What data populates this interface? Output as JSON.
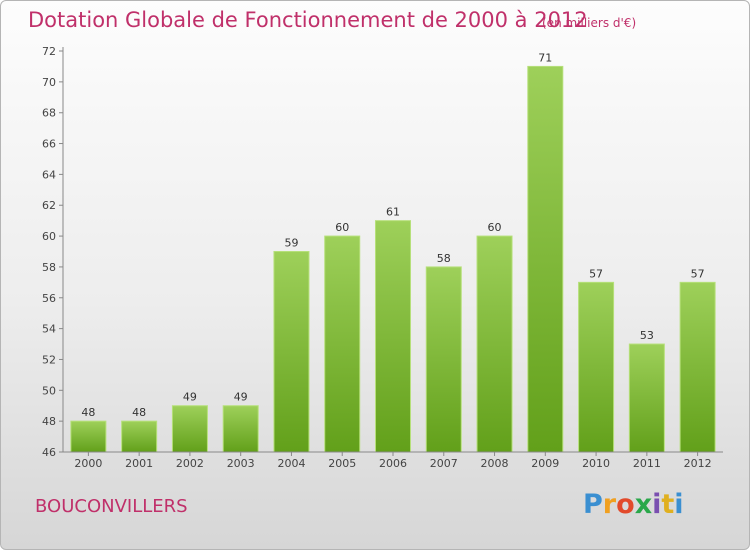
{
  "header": {
    "title": "Dotation Globale de Fonctionnement de 2000 à 2012",
    "subtitle": "(en milliers d'€)"
  },
  "footer": {
    "commune": "BOUCONVILLERS",
    "logo_letters": [
      "P",
      "r",
      "o",
      "x",
      "i",
      "t",
      "i"
    ],
    "logo_colors": [
      "#3a8fd1",
      "#f0a020",
      "#e24a2b",
      "#2aa84a",
      "#7a4fb0",
      "#e0b020",
      "#3a8fd1"
    ]
  },
  "chart_data": {
    "type": "bar",
    "title": "Dotation Globale de Fonctionnement de 2000 à 2012",
    "subtitle": "(en milliers d'€)",
    "categories": [
      "2000",
      "2001",
      "2002",
      "2003",
      "2004",
      "2005",
      "2006",
      "2007",
      "2008",
      "2009",
      "2010",
      "2011",
      "2012"
    ],
    "values": [
      48,
      48,
      49,
      49,
      59,
      60,
      61,
      58,
      60,
      71,
      57,
      53,
      57
    ],
    "ylim": [
      46,
      72
    ],
    "yticks": [
      46,
      48,
      50,
      52,
      54,
      56,
      58,
      60,
      62,
      64,
      66,
      68,
      70,
      72
    ],
    "grid": false,
    "colors": {
      "bar_top": "#9ed05a",
      "bar_bottom": "#62a01a",
      "axis": "#888888"
    }
  }
}
